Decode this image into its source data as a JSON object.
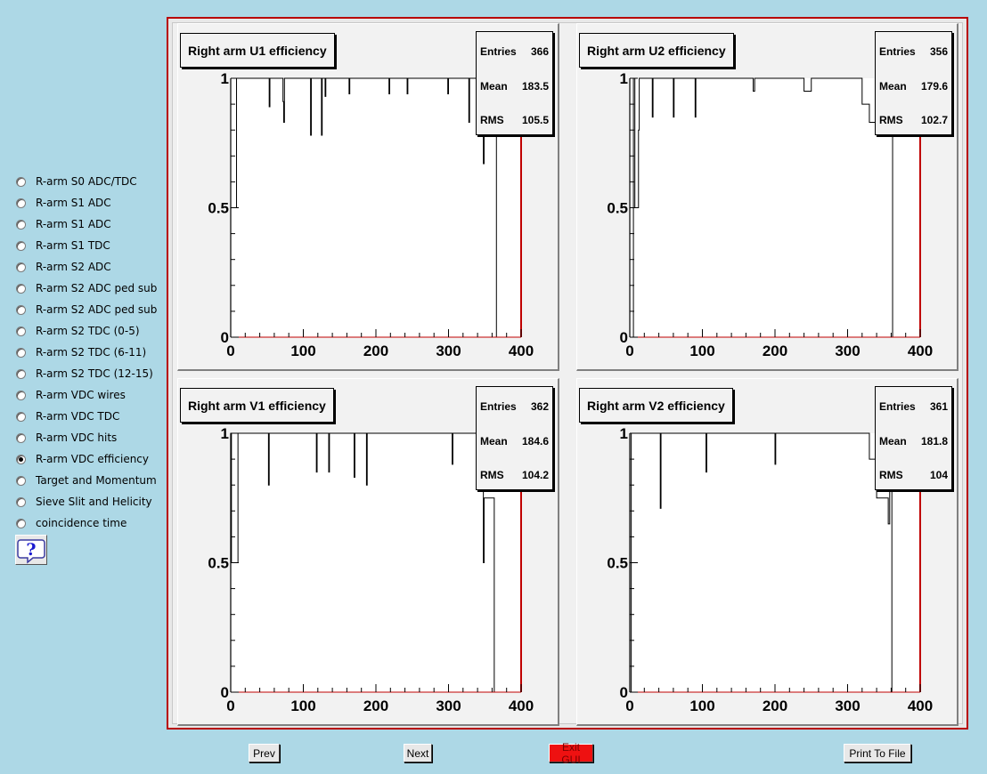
{
  "sidebar": {
    "options": [
      {
        "label": "R-arm S0 ADC/TDC",
        "selected": false
      },
      {
        "label": "R-arm S1 ADC",
        "selected": false
      },
      {
        "label": "R-arm S1 ADC",
        "selected": false
      },
      {
        "label": "R-arm S1 TDC",
        "selected": false
      },
      {
        "label": "R-arm S2 ADC",
        "selected": false
      },
      {
        "label": "R-arm S2 ADC ped sub",
        "selected": false
      },
      {
        "label": "R-arm S2 ADC ped sub",
        "selected": false
      },
      {
        "label": "R-arm S2 TDC (0-5)",
        "selected": false
      },
      {
        "label": "R-arm S2 TDC (6-11)",
        "selected": false
      },
      {
        "label": "R-arm S2 TDC (12-15)",
        "selected": false
      },
      {
        "label": "R-arm VDC wires",
        "selected": false
      },
      {
        "label": "R-arm VDC TDC",
        "selected": false
      },
      {
        "label": "R-arm VDC hits",
        "selected": false
      },
      {
        "label": "R-arm VDC efficiency",
        "selected": true
      },
      {
        "label": "Target and Momentum",
        "selected": false
      },
      {
        "label": "Sieve Slit and Helicity",
        "selected": false
      },
      {
        "label": "coincidence time",
        "selected": false
      }
    ],
    "help_icon": "question-mark-icon"
  },
  "buttons": {
    "prev": "Prev",
    "next": "Next",
    "exit": "Exit GUI",
    "print": "Print To File"
  },
  "colors": {
    "background": "#add8e6",
    "frame": "#b80000",
    "exit_button": "#ee1111"
  },
  "stats_labels": {
    "entries": "Entries",
    "mean": "Mean",
    "rms": "RMS"
  },
  "chart_data": [
    {
      "type": "bar",
      "title": "Right arm U1 efficiency",
      "entries": "366",
      "mean": "183.5",
      "rms": "105.5",
      "xlim": [
        0,
        400
      ],
      "ylim": [
        0,
        1
      ],
      "xticks": [
        "0",
        "100",
        "200",
        "300",
        "400"
      ],
      "yticks": [
        "0",
        "0.5",
        "1"
      ],
      "bins": [
        [
          0,
          8,
          0.5
        ],
        [
          8,
          53,
          1
        ],
        [
          53,
          54,
          0.89
        ],
        [
          54,
          72,
          1
        ],
        [
          72,
          73,
          0.91
        ],
        [
          73,
          74,
          0.83
        ],
        [
          74,
          110,
          1
        ],
        [
          110,
          111,
          0.78
        ],
        [
          111,
          125,
          1
        ],
        [
          125,
          126,
          0.78
        ],
        [
          126,
          130,
          1
        ],
        [
          130,
          131,
          0.93
        ],
        [
          131,
          163,
          1
        ],
        [
          163,
          164,
          0.94
        ],
        [
          164,
          218,
          1
        ],
        [
          218,
          219,
          0.94
        ],
        [
          219,
          243,
          1
        ],
        [
          243,
          244,
          0.94
        ],
        [
          244,
          299,
          1
        ],
        [
          299,
          300,
          0.94
        ],
        [
          300,
          328,
          1
        ],
        [
          328,
          329,
          0.83
        ],
        [
          329,
          348,
          1
        ],
        [
          348,
          349,
          0.67
        ],
        [
          349,
          366,
          1
        ],
        [
          366,
          400,
          0
        ]
      ]
    },
    {
      "type": "bar",
      "title": "Right arm U2 efficiency",
      "entries": "356",
      "mean": "179.6",
      "rms": "102.7",
      "xlim": [
        0,
        400
      ],
      "ylim": [
        0,
        1
      ],
      "xticks": [
        "0",
        "100",
        "200",
        "300",
        "400"
      ],
      "yticks": [
        "0",
        "0.5",
        "1"
      ],
      "bins": [
        [
          0,
          5,
          0
        ],
        [
          5,
          7,
          1
        ],
        [
          7,
          12,
          0.5
        ],
        [
          12,
          13,
          0.8
        ],
        [
          13,
          31,
          1
        ],
        [
          31,
          32,
          0.85
        ],
        [
          32,
          60,
          1
        ],
        [
          60,
          61,
          0.85
        ],
        [
          61,
          90,
          1
        ],
        [
          90,
          91,
          0.85
        ],
        [
          91,
          170,
          1
        ],
        [
          170,
          172,
          0.95
        ],
        [
          172,
          240,
          1
        ],
        [
          240,
          250,
          0.95
        ],
        [
          250,
          320,
          1
        ],
        [
          320,
          330,
          0.9
        ],
        [
          330,
          338,
          0.83
        ],
        [
          338,
          343,
          1
        ],
        [
          343,
          350,
          0.8
        ],
        [
          350,
          362,
          0.78
        ],
        [
          362,
          400,
          0
        ]
      ]
    },
    {
      "type": "bar",
      "title": "Right arm V1 efficiency",
      "entries": "362",
      "mean": "184.6",
      "rms": "104.2",
      "xlim": [
        0,
        400
      ],
      "ylim": [
        0,
        1
      ],
      "xticks": [
        "0",
        "100",
        "200",
        "300",
        "400"
      ],
      "yticks": [
        "0",
        "0.5",
        "1"
      ],
      "bins": [
        [
          0,
          1,
          1
        ],
        [
          1,
          10,
          0.5
        ],
        [
          10,
          15,
          1
        ],
        [
          15,
          52,
          1
        ],
        [
          52,
          53,
          0.8
        ],
        [
          53,
          118,
          1
        ],
        [
          118,
          119,
          0.85
        ],
        [
          119,
          135,
          1
        ],
        [
          135,
          136,
          0.85
        ],
        [
          136,
          170,
          1
        ],
        [
          170,
          171,
          0.83
        ],
        [
          171,
          187,
          1
        ],
        [
          187,
          188,
          0.8
        ],
        [
          188,
          305,
          1
        ],
        [
          305,
          306,
          0.88
        ],
        [
          306,
          348,
          1
        ],
        [
          348,
          349,
          0.5
        ],
        [
          349,
          360,
          0.75
        ],
        [
          360,
          363,
          0.75
        ],
        [
          363,
          400,
          0
        ]
      ]
    },
    {
      "type": "bar",
      "title": "Right arm V2 efficiency",
      "entries": "361",
      "mean": "181.8",
      "rms": "104",
      "xlim": [
        0,
        400
      ],
      "ylim": [
        0,
        1
      ],
      "xticks": [
        "0",
        "100",
        "200",
        "300",
        "400"
      ],
      "yticks": [
        "0",
        "0.5",
        "1"
      ],
      "bins": [
        [
          0,
          2,
          0
        ],
        [
          2,
          3,
          1
        ],
        [
          3,
          42,
          1
        ],
        [
          42,
          43,
          0.71
        ],
        [
          43,
          105,
          1
        ],
        [
          105,
          106,
          0.85
        ],
        [
          106,
          200,
          1
        ],
        [
          200,
          201,
          0.88
        ],
        [
          201,
          330,
          1
        ],
        [
          330,
          340,
          0.9
        ],
        [
          340,
          356,
          0.75
        ],
        [
          356,
          358,
          0.65
        ],
        [
          358,
          361,
          1
        ],
        [
          361,
          400,
          0
        ]
      ]
    }
  ]
}
